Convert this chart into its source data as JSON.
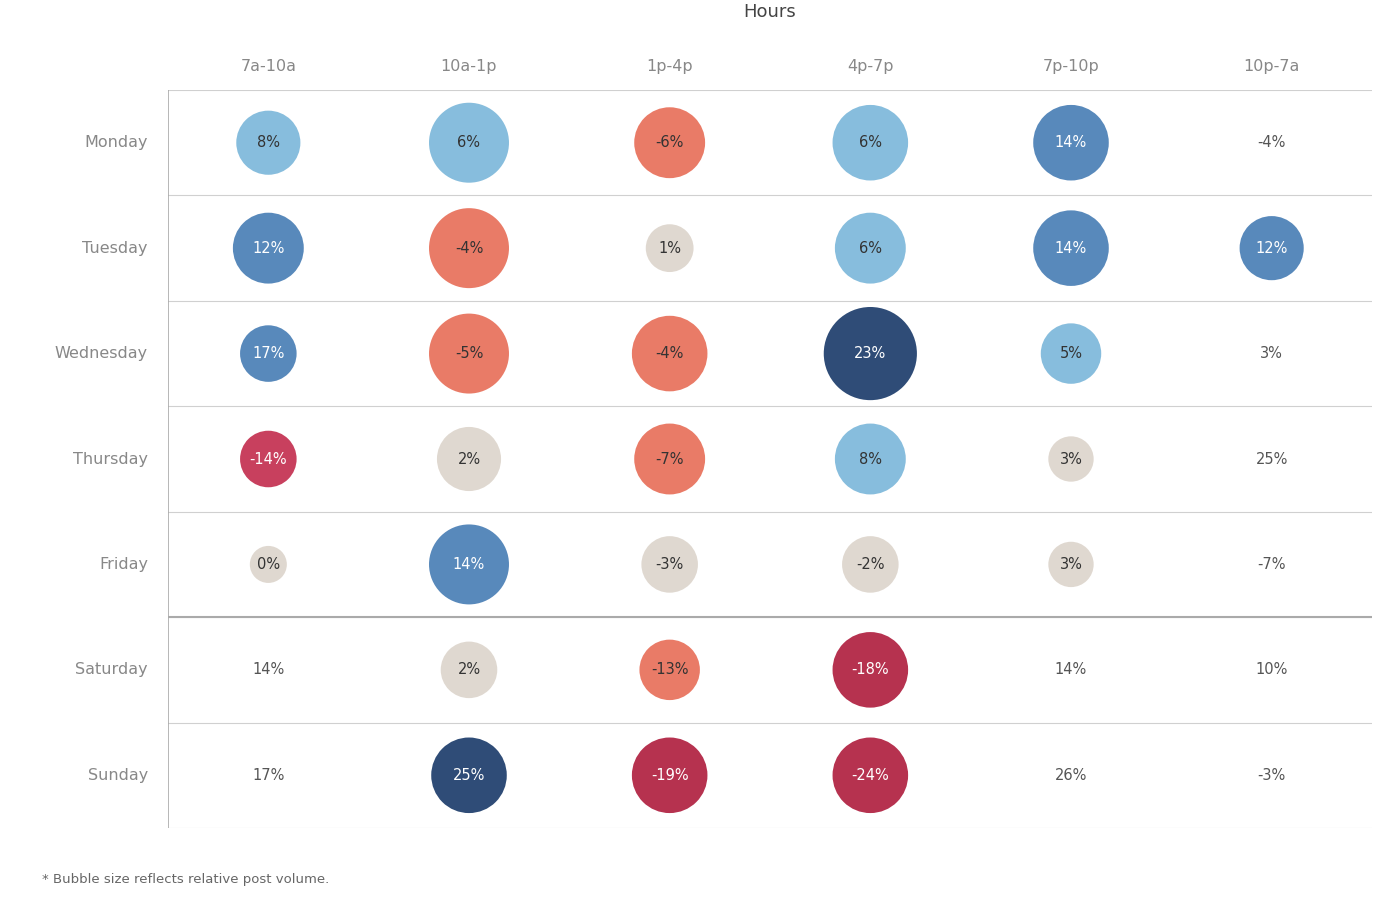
{
  "title": "Hours",
  "footnote": "* Bubble size reflects relative post volume.",
  "columns": [
    "7a-10a",
    "10a-1p",
    "1p-4p",
    "4p-7p",
    "7p-10p",
    "10p-7a"
  ],
  "rows": [
    "Monday",
    "Tuesday",
    "Wednesday",
    "Thursday",
    "Friday",
    "Saturday",
    "Sunday"
  ],
  "values": [
    [
      8,
      6,
      -6,
      6,
      14,
      -4
    ],
    [
      12,
      -4,
      1,
      6,
      14,
      12
    ],
    [
      17,
      -5,
      -4,
      23,
      5,
      3
    ],
    [
      -14,
      2,
      -7,
      8,
      3,
      25
    ],
    [
      0,
      14,
      -3,
      -2,
      3,
      -7
    ],
    [
      14,
      2,
      -13,
      -18,
      14,
      10
    ],
    [
      17,
      25,
      -19,
      -24,
      26,
      -3
    ]
  ],
  "bubble_sizes": [
    [
      1800,
      2800,
      2200,
      2500,
      2500,
      300
    ],
    [
      2200,
      2800,
      1000,
      2200,
      2500,
      1800
    ],
    [
      1400,
      2800,
      2500,
      3800,
      1600,
      300
    ],
    [
      1400,
      1800,
      2200,
      2200,
      900,
      1600
    ],
    [
      600,
      2800,
      1400,
      1400,
      900,
      300
    ],
    [
      900,
      1400,
      1600,
      2500,
      900,
      300
    ],
    [
      900,
      2500,
      2500,
      2500,
      1200,
      300
    ]
  ],
  "colors": [
    [
      "#7db8da",
      "#7db8da",
      "#e8705a",
      "#7db8da",
      "#4a7fb5",
      "#e8705a"
    ],
    [
      "#4a7fb5",
      "#e8705a",
      "#ddd5cc",
      "#7db8da",
      "#4a7fb5",
      "#4a7fb5"
    ],
    [
      "#4a7fb5",
      "#e8705a",
      "#e8705a",
      "#1d3d6b",
      "#7db8da",
      "#ddd5cc"
    ],
    [
      "#c43050",
      "#ddd5cc",
      "#e8705a",
      "#7db8da",
      "#ddd5cc",
      "#4a7fb5"
    ],
    [
      "#ddd5cc",
      "#4a7fb5",
      "#ddd5cc",
      "#ddd5cc",
      "#ddd5cc",
      "#ddd5cc"
    ],
    [
      "#ddd5cc",
      "#ddd5cc",
      "#e8705a",
      "#b02040",
      "#4a7fb5",
      "#ddd5cc"
    ],
    [
      "#ddd5cc",
      "#1d3d6b",
      "#b02040",
      "#b02040",
      "#4a7fb5",
      "#ddd5cc"
    ]
  ],
  "show_bubble": [
    [
      true,
      true,
      true,
      true,
      true,
      false
    ],
    [
      true,
      true,
      true,
      true,
      true,
      true
    ],
    [
      true,
      true,
      true,
      true,
      true,
      false
    ],
    [
      true,
      true,
      true,
      true,
      true,
      false
    ],
    [
      true,
      true,
      true,
      true,
      true,
      false
    ],
    [
      false,
      true,
      true,
      true,
      false,
      false
    ],
    [
      false,
      true,
      true,
      true,
      false,
      false
    ]
  ],
  "text_white": [
    [
      false,
      false,
      false,
      false,
      true,
      false
    ],
    [
      true,
      false,
      false,
      false,
      true,
      true
    ],
    [
      true,
      false,
      false,
      true,
      false,
      false
    ],
    [
      true,
      false,
      false,
      false,
      false,
      true
    ],
    [
      false,
      true,
      false,
      false,
      false,
      false
    ],
    [
      false,
      false,
      false,
      true,
      false,
      false
    ],
    [
      false,
      true,
      true,
      true,
      false,
      false
    ]
  ],
  "background_color": "#ffffff",
  "grid_color": "#d0d0d0",
  "separator_color": "#aaaaaa",
  "title_color": "#444444",
  "label_color": "#888888"
}
